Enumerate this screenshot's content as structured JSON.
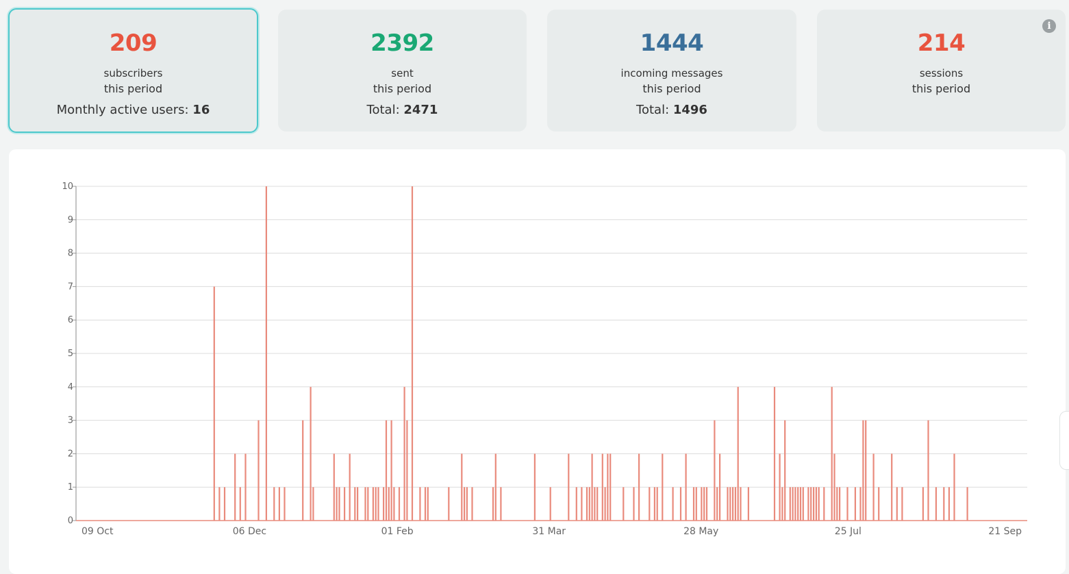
{
  "cards": [
    {
      "value": "209",
      "line1": "subscribers",
      "line2": "this period",
      "total_label": "Monthly active users: ",
      "total_value": "16",
      "color": "#e8543f"
    },
    {
      "value": "2392",
      "line1": "sent",
      "line2": "this period",
      "total_label": "Total: ",
      "total_value": "2471",
      "color": "#1aa874"
    },
    {
      "value": "1444",
      "line1": "incoming messages",
      "line2": "this period",
      "total_label": "Total: ",
      "total_value": "1496",
      "color": "#3a6f9a"
    },
    {
      "value": "214",
      "line1": "sessions",
      "line2": "this period",
      "color": "#e8543f"
    }
  ],
  "info_icon": "info-icon",
  "chart_data": {
    "type": "bar",
    "color": "#e98a7c",
    "ylim": [
      0,
      10
    ],
    "yticks": [
      0,
      1,
      2,
      3,
      4,
      5,
      6,
      7,
      8,
      9,
      10
    ],
    "xticks": [
      {
        "label": "09 Oct",
        "day": 0
      },
      {
        "label": "06 Dec",
        "day": 58
      },
      {
        "label": "01 Feb",
        "day": 115
      },
      {
        "label": "31 Mar",
        "day": 173
      },
      {
        "label": "28 May",
        "day": 231
      },
      {
        "label": "25 Jul",
        "day": 289
      },
      {
        "label": "21 Sep",
        "day": 347
      }
    ],
    "x_days_total": 365,
    "points": [
      [
        53,
        7
      ],
      [
        55,
        1
      ],
      [
        57,
        1
      ],
      [
        61,
        2
      ],
      [
        63,
        1
      ],
      [
        65,
        2
      ],
      [
        70,
        3
      ],
      [
        73,
        10
      ],
      [
        76,
        1
      ],
      [
        78,
        1
      ],
      [
        80,
        1
      ],
      [
        87,
        3
      ],
      [
        90,
        4
      ],
      [
        91,
        1
      ],
      [
        99,
        2
      ],
      [
        100,
        1
      ],
      [
        101,
        1
      ],
      [
        103,
        1
      ],
      [
        105,
        2
      ],
      [
        107,
        1
      ],
      [
        108,
        1
      ],
      [
        111,
        1
      ],
      [
        112,
        1
      ],
      [
        114,
        1
      ],
      [
        115,
        1
      ],
      [
        116,
        1
      ],
      [
        118,
        1
      ],
      [
        119,
        3
      ],
      [
        120,
        1
      ],
      [
        121,
        3
      ],
      [
        122,
        1
      ],
      [
        124,
        1
      ],
      [
        126,
        4
      ],
      [
        127,
        3
      ],
      [
        129,
        10
      ],
      [
        132,
        1
      ],
      [
        134,
        1
      ],
      [
        135,
        1
      ],
      [
        143,
        1
      ],
      [
        148,
        2
      ],
      [
        149,
        1
      ],
      [
        150,
        1
      ],
      [
        152,
        1
      ],
      [
        160,
        1
      ],
      [
        161,
        2
      ],
      [
        163,
        1
      ],
      [
        176,
        2
      ],
      [
        182,
        1
      ],
      [
        189,
        2
      ],
      [
        192,
        1
      ],
      [
        194,
        1
      ],
      [
        196,
        1
      ],
      [
        197,
        1
      ],
      [
        198,
        2
      ],
      [
        199,
        1
      ],
      [
        200,
        1
      ],
      [
        202,
        2
      ],
      [
        203,
        1
      ],
      [
        204,
        2
      ],
      [
        205,
        2
      ],
      [
        210,
        1
      ],
      [
        214,
        1
      ],
      [
        216,
        2
      ],
      [
        220,
        1
      ],
      [
        222,
        1
      ],
      [
        223,
        1
      ],
      [
        225,
        2
      ],
      [
        229,
        1
      ],
      [
        232,
        1
      ],
      [
        234,
        2
      ],
      [
        237,
        1
      ],
      [
        238,
        1
      ],
      [
        240,
        1
      ],
      [
        241,
        1
      ],
      [
        242,
        1
      ],
      [
        245,
        3
      ],
      [
        246,
        1
      ],
      [
        247,
        2
      ],
      [
        250,
        1
      ],
      [
        251,
        1
      ],
      [
        252,
        1
      ],
      [
        253,
        1
      ],
      [
        254,
        4
      ],
      [
        255,
        1
      ],
      [
        258,
        1
      ],
      [
        268,
        4
      ],
      [
        270,
        2
      ],
      [
        271,
        1
      ],
      [
        272,
        3
      ],
      [
        274,
        1
      ],
      [
        275,
        1
      ],
      [
        276,
        1
      ],
      [
        277,
        1
      ],
      [
        278,
        1
      ],
      [
        279,
        1
      ],
      [
        281,
        1
      ],
      [
        282,
        1
      ],
      [
        283,
        1
      ],
      [
        284,
        1
      ],
      [
        285,
        1
      ],
      [
        287,
        1
      ],
      [
        290,
        4
      ],
      [
        291,
        2
      ],
      [
        292,
        1
      ],
      [
        293,
        1
      ],
      [
        296,
        1
      ],
      [
        299,
        1
      ],
      [
        301,
        1
      ],
      [
        302,
        3
      ],
      [
        303,
        3
      ],
      [
        306,
        2
      ],
      [
        308,
        1
      ],
      [
        313,
        2
      ],
      [
        315,
        1
      ],
      [
        317,
        1
      ],
      [
        325,
        1
      ],
      [
        327,
        3
      ],
      [
        330,
        1
      ],
      [
        333,
        1
      ],
      [
        335,
        1
      ],
      [
        337,
        2
      ],
      [
        342,
        1
      ]
    ]
  }
}
